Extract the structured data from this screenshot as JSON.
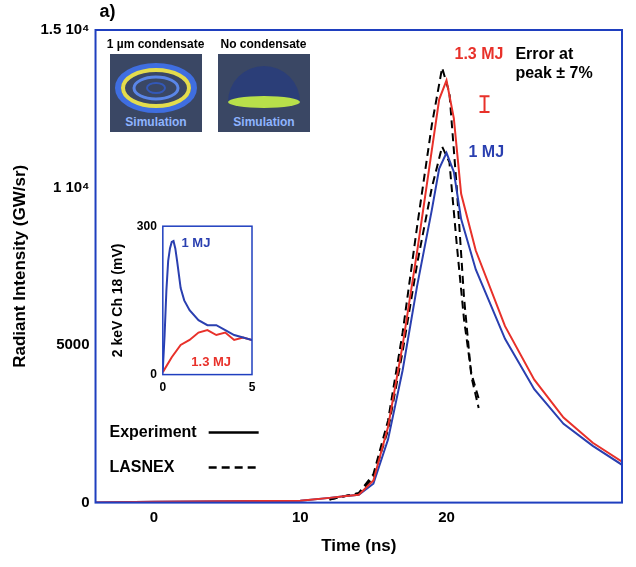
{
  "chart_data": [
    {
      "type": "line",
      "title": "a)",
      "x_label": "Time (ns)",
      "y_label": "Radiant Intensity (GW/sr)",
      "xlim": [
        -4,
        32
      ],
      "xticks": [
        0,
        10,
        20
      ],
      "ylim": [
        0,
        15000
      ],
      "yticks": [
        0,
        5000,
        {
          "value": 10000,
          "label": "1 10⁴"
        },
        {
          "value": 15000,
          "label": "1.5 10⁴"
        }
      ],
      "grid": false,
      "legend": "lower left",
      "series": [
        {
          "name": "Experiment",
          "color": "#e8312a",
          "line_style": "solid",
          "x": [
            -4,
            0,
            5,
            10,
            12,
            13,
            14,
            15,
            16,
            17,
            18,
            19,
            19.5,
            20,
            20.5,
            21,
            22,
            24,
            26,
            28,
            30,
            32
          ],
          "values": [
            0,
            30,
            40,
            60,
            150,
            200,
            250,
            700,
            2400,
            5000,
            8000,
            11200,
            12800,
            13400,
            12200,
            9800,
            8000,
            5600,
            3900,
            2700,
            1900,
            1300
          ]
        },
        {
          "name": "Experiment",
          "color": "#2a3fb0",
          "line_style": "solid",
          "x": [
            -4,
            0,
            5,
            10,
            12,
            13,
            14,
            15,
            16,
            17,
            18,
            19,
            19.5,
            20,
            20.5,
            21,
            22,
            24,
            26,
            28,
            30,
            32
          ],
          "values": [
            0,
            30,
            40,
            60,
            150,
            200,
            250,
            600,
            2000,
            4200,
            6900,
            9300,
            10600,
            11100,
            10500,
            9000,
            7400,
            5200,
            3600,
            2500,
            1800,
            1200
          ]
        },
        {
          "name": "LASNEX",
          "color": "#000000",
          "line_style": "dashed",
          "x": [
            12,
            13,
            14,
            15,
            16,
            17,
            18,
            19,
            19.7,
            20.2,
            20.7,
            21.2,
            21.7,
            22.2
          ],
          "values": [
            100,
            200,
            300,
            900,
            2600,
            5400,
            8800,
            12000,
            13800,
            13000,
            10000,
            6500,
            4000,
            3000
          ]
        },
        {
          "name": "LASNEX",
          "color": "#000000",
          "line_style": "dashed",
          "x": [
            12,
            13,
            14,
            15,
            16,
            17,
            18,
            19,
            19.7,
            20.2,
            20.7,
            21.2,
            21.7,
            22.2
          ],
          "values": [
            100,
            200,
            300,
            800,
            2300,
            4800,
            7600,
            10000,
            11300,
            10800,
            8200,
            5800,
            4100,
            3300
          ]
        }
      ],
      "annotations": [
        {
          "text": "1.3 MJ",
          "color": "#e8312a"
        },
        {
          "text": "1 MJ",
          "color": "#2a3fb0"
        },
        {
          "text": "Error at peak ± 7%",
          "color": "#000000"
        }
      ],
      "error_bars": [
        {
          "x": 22.6,
          "low": 12400,
          "high": 12900,
          "color": "#e8312a"
        }
      ]
    },
    {
      "type": "line",
      "y_label": "2 keV Ch 18 (mV)",
      "xlim": [
        0,
        5
      ],
      "xticks": [
        0,
        5
      ],
      "ylim": [
        0,
        300
      ],
      "yticks": [
        0,
        300
      ],
      "grid": false,
      "series": [
        {
          "name": "1 MJ",
          "color": "#2a3fb0",
          "line_style": "solid",
          "x": [
            0,
            0.1,
            0.2,
            0.3,
            0.4,
            0.5,
            0.6,
            0.7,
            0.8,
            1.0,
            1.2,
            1.5,
            2.0,
            2.5,
            3.0,
            3.5,
            4.0,
            4.5,
            5.0
          ],
          "values": [
            10,
            80,
            170,
            230,
            255,
            268,
            270,
            255,
            230,
            175,
            150,
            130,
            110,
            100,
            100,
            90,
            80,
            75,
            70
          ]
        },
        {
          "name": "1.3 MJ",
          "color": "#e8312a",
          "line_style": "solid",
          "x": [
            0,
            0.5,
            1,
            1.5,
            2,
            2.5,
            3,
            3.5,
            4,
            4.5,
            5
          ],
          "values": [
            5,
            35,
            60,
            70,
            85,
            90,
            80,
            85,
            70,
            75,
            70
          ]
        }
      ]
    }
  ],
  "images": [
    {
      "caption": "1 µm condensate",
      "label": "Simulation"
    },
    {
      "caption": "No condensate",
      "label": "Simulation"
    }
  ]
}
